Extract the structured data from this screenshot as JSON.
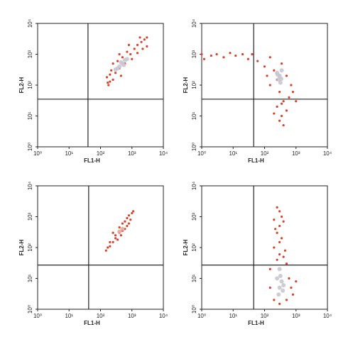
{
  "chart_data": [
    {
      "type": "scatter",
      "x_label": "FL1-H",
      "y_label": "FL2-H",
      "log_scale": true,
      "xlim": [
        1,
        10000
      ],
      "ylim": [
        1,
        10000
      ],
      "xticks": [
        {
          "value": 1,
          "label": "10⁰"
        },
        {
          "value": 10,
          "label": "10¹"
        },
        {
          "value": 100,
          "label": "10²"
        },
        {
          "value": 1000,
          "label": "10³"
        },
        {
          "value": 10000,
          "label": "10⁴"
        }
      ],
      "yticks": [
        {
          "value": 1,
          "label": "10⁰"
        },
        {
          "value": 10,
          "label": "10¹"
        },
        {
          "value": 100,
          "label": "10²"
        },
        {
          "value": 1000,
          "label": "10³"
        },
        {
          "value": 10000,
          "label": "10⁴"
        }
      ],
      "gates": {
        "x": 40,
        "y": 35
      },
      "series": [
        {
          "color": "#d8432c",
          "x": [
            180,
            200,
            160,
            250,
            300,
            220,
            400,
            350,
            500,
            600,
            700,
            900,
            1200,
            1500,
            2000,
            2500,
            3000,
            1800,
            800,
            400,
            250,
            1000,
            1500,
            2200,
            3000,
            200,
            450,
            170
          ],
          "y": [
            100,
            130,
            180,
            150,
            250,
            300,
            350,
            600,
            800,
            500,
            1200,
            1000,
            1500,
            2000,
            2500,
            3000,
            1800,
            3500,
            2000,
            1000,
            500,
            700,
            1100,
            1500,
            3500,
            220,
            200,
            120
          ]
        },
        {
          "color": "#c9c6d0",
          "x": [
            400,
            500,
            350,
            600,
            450,
            550,
            300,
            700
          ],
          "y": [
            400,
            500,
            350,
            650,
            550,
            450,
            320,
            700
          ]
        }
      ]
    },
    {
      "type": "scatter",
      "x_label": "FL1-H",
      "y_label": "FL2-H",
      "log_scale": true,
      "xlim": [
        1,
        10000
      ],
      "ylim": [
        1,
        10000
      ],
      "xticks": [
        {
          "value": 1,
          "label": "10⁰"
        },
        {
          "value": 10,
          "label": "10¹"
        },
        {
          "value": 100,
          "label": "10²"
        },
        {
          "value": 1000,
          "label": "10³"
        },
        {
          "value": 10000,
          "label": "10⁴"
        }
      ],
      "yticks": [
        {
          "value": 1,
          "label": "10⁰"
        },
        {
          "value": 10,
          "label": "10¹"
        },
        {
          "value": 100,
          "label": "10²"
        },
        {
          "value": 1000,
          "label": "10³"
        },
        {
          "value": 10000,
          "label": "10⁴"
        }
      ],
      "gates": {
        "x": 45,
        "y": 35
      },
      "series": [
        {
          "color": "#d8432c",
          "x": [
            1,
            1.2,
            2,
            3,
            5,
            8,
            12,
            20,
            30,
            40,
            60,
            100,
            150,
            200,
            250,
            350,
            500,
            700,
            150,
            300,
            400,
            250,
            350,
            500,
            300,
            400,
            200,
            600,
            1000,
            800,
            120,
            350
          ],
          "y": [
            1000,
            700,
            900,
            1000,
            800,
            1100,
            900,
            1000,
            700,
            1000,
            600,
            400,
            800,
            300,
            150,
            500,
            200,
            100,
            100,
            60,
            30,
            20,
            10,
            15,
            7,
            5,
            12,
            40,
            30,
            60,
            200,
            25
          ]
        },
        {
          "color": "#c9c6d0",
          "x": [
            250,
            300,
            350,
            280,
            320,
            300,
            260,
            340
          ],
          "y": [
            250,
            200,
            300,
            150,
            120,
            180,
            220,
            160
          ]
        }
      ]
    },
    {
      "type": "scatter",
      "x_label": "FL1-H",
      "y_label": "FL2-H",
      "log_scale": true,
      "xlim": [
        1,
        10000
      ],
      "ylim": [
        1,
        10000
      ],
      "xticks": [
        {
          "value": 1,
          "label": "10⁰"
        },
        {
          "value": 10,
          "label": "10¹"
        },
        {
          "value": 100,
          "label": "10²"
        },
        {
          "value": 1000,
          "label": "10³"
        },
        {
          "value": 10000,
          "label": "10⁴"
        }
      ],
      "yticks": [
        {
          "value": 1,
          "label": "10⁰"
        },
        {
          "value": 10,
          "label": "10¹"
        },
        {
          "value": 100,
          "label": "10²"
        },
        {
          "value": 1000,
          "label": "10³"
        },
        {
          "value": 10000,
          "label": "10⁴"
        }
      ],
      "gates": {
        "x": 42,
        "y": 27
      },
      "series": [
        {
          "color": "#d8432c",
          "x": [
            150,
            170,
            200,
            250,
            300,
            350,
            400,
            450,
            500,
            600,
            700,
            800,
            600,
            700,
            800,
            1000,
            900,
            300,
            250,
            400,
            1100,
            500,
            200
          ],
          "y": [
            80,
            100,
            110,
            150,
            200,
            180,
            300,
            250,
            350,
            400,
            500,
            600,
            700,
            900,
            1100,
            1300,
            800,
            250,
            300,
            450,
            1500,
            600,
            150
          ]
        },
        {
          "color": "#e8a8a0",
          "x": [
            400,
            500
          ],
          "y": [
            330,
            400
          ]
        }
      ]
    },
    {
      "type": "scatter",
      "x_label": "FL1-H",
      "y_label": "FL2-H",
      "log_scale": true,
      "xlim": [
        1,
        10000
      ],
      "ylim": [
        1,
        10000
      ],
      "xticks": [
        {
          "value": 1,
          "label": "10⁰"
        },
        {
          "value": 10,
          "label": "10¹"
        },
        {
          "value": 100,
          "label": "10²"
        },
        {
          "value": 1000,
          "label": "10³"
        },
        {
          "value": 10000,
          "label": "10⁴"
        }
      ],
      "yticks": [
        {
          "value": 1,
          "label": "10⁰"
        },
        {
          "value": 10,
          "label": "10¹"
        },
        {
          "value": 100,
          "label": "10²"
        },
        {
          "value": 1000,
          "label": "10³"
        },
        {
          "value": 10000,
          "label": "10⁴"
        }
      ],
      "gates": {
        "x": 45,
        "y": 27
      },
      "series": [
        {
          "color": "#d8432c",
          "x": [
            300,
            250,
            350,
            200,
            400,
            300,
            250,
            350,
            300,
            200,
            450,
            300,
            250,
            500,
            150,
            600,
            700,
            800,
            150,
            200,
            300,
            500,
            1000,
            400,
            220
          ],
          "y": [
            1500,
            2000,
            1000,
            800,
            700,
            500,
            300,
            200,
            150,
            100,
            80,
            60,
            40,
            30,
            20,
            10,
            5,
            3,
            5,
            2,
            1.5,
            2,
            8,
            50,
            400
          ]
        },
        {
          "color": "#c9c6d0",
          "x": [
            300,
            350,
            280,
            400,
            320,
            300,
            250,
            380
          ],
          "y": [
            5,
            8,
            3,
            6,
            12,
            20,
            10,
            4
          ]
        }
      ]
    }
  ]
}
